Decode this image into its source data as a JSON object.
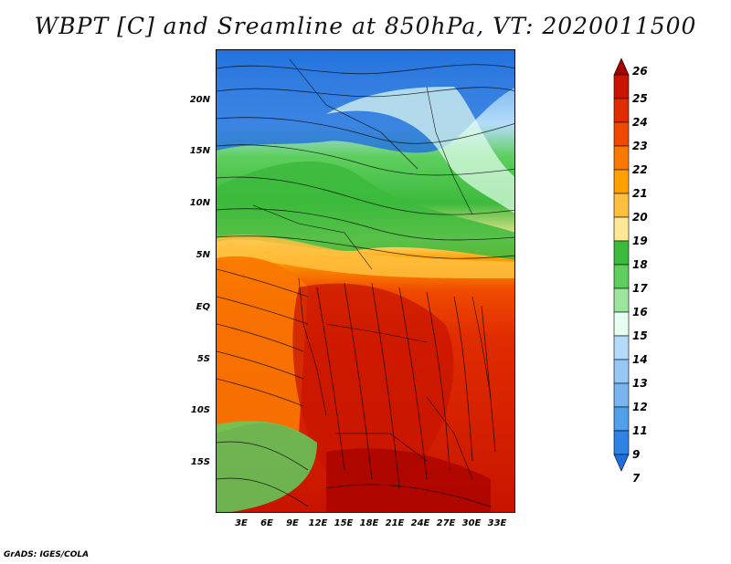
{
  "title": "WBPT [C] and Sreamline at 850hPa, VT: 2020011500",
  "footer": "GrADS: IGES/COLA",
  "latitude_labels": [
    "20N",
    "15N",
    "10N",
    "5N",
    "EQ",
    "5S",
    "10S",
    "15S"
  ],
  "longitude_labels": [
    "3E",
    "6E",
    "9E",
    "12E",
    "15E",
    "18E",
    "21E",
    "24E",
    "27E",
    "30E",
    "33E"
  ],
  "colorbar": {
    "labels": [
      "26",
      "25",
      "24",
      "23",
      "22",
      "21",
      "20",
      "19",
      "18",
      "17",
      "16",
      "15",
      "14",
      "13",
      "12",
      "11",
      "9",
      "7"
    ],
    "colors": [
      "#a50000",
      "#c81400",
      "#e02c00",
      "#f04a00",
      "#fa7800",
      "#ffa000",
      "#ffc040",
      "#ffe896",
      "#3cba3c",
      "#5ecf5e",
      "#9de49d",
      "#e6fff0",
      "#b4dcfa",
      "#96c8f5",
      "#78b4f0",
      "#50a0eb",
      "#2d82e6",
      "#1e6edc"
    ]
  },
  "map_fields": {
    "variable": "WBPT [C]",
    "level": "850hPa",
    "valid_time": "2020011500"
  }
}
